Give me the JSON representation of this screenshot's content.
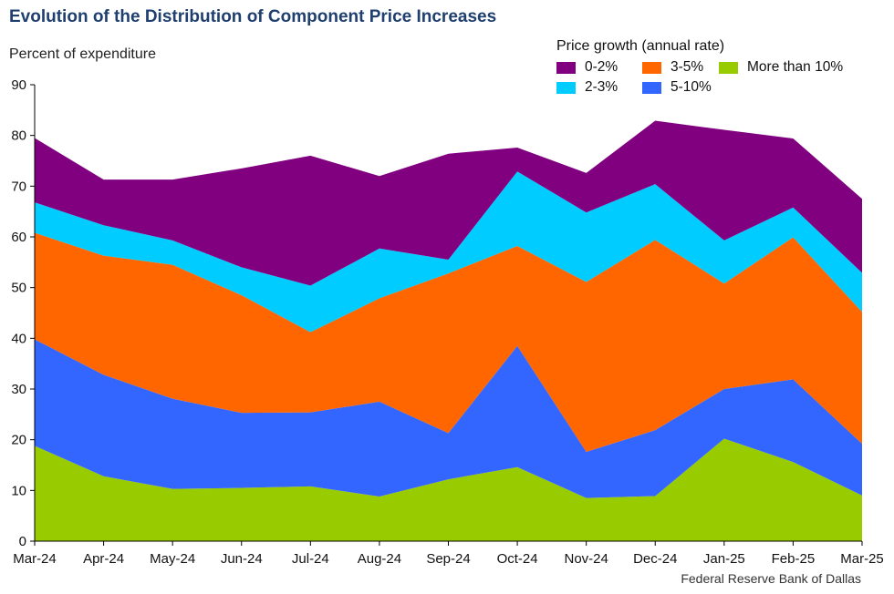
{
  "chart_data": {
    "type": "area",
    "stacked": true,
    "title": "Evolution of the Distribution of Component Price Increases",
    "ylabel": "Percent of expenditure",
    "xlabel": "",
    "ylim": [
      0,
      90
    ],
    "yticks": [
      0,
      10,
      20,
      30,
      40,
      50,
      60,
      70,
      80,
      90
    ],
    "categories": [
      "Mar-24",
      "Apr-24",
      "May-24",
      "Jun-24",
      "Jul-24",
      "Aug-24",
      "Sep-24",
      "Oct-24",
      "Nov-24",
      "Dec-24",
      "Jan-25",
      "Feb-25",
      "Mar-25"
    ],
    "legend_title": "Price growth (annual rate)",
    "legend_position": "top-right",
    "series": [
      {
        "name": "More than 10%",
        "color": "#99cc00",
        "values": [
          18.8,
          12.8,
          10.3,
          10.5,
          10.8,
          8.8,
          12.2,
          14.6,
          8.5,
          8.9,
          20.2,
          15.6,
          9.0
        ]
      },
      {
        "name": "5-10%",
        "color": "#3366ff",
        "values": [
          21.0,
          20.0,
          17.8,
          14.8,
          14.6,
          18.7,
          9.1,
          23.9,
          9.1,
          13.0,
          9.8,
          16.3,
          10.2
        ]
      },
      {
        "name": "3-5%",
        "color": "#ff6600",
        "values": [
          21.0,
          23.5,
          26.4,
          23.2,
          15.8,
          20.4,
          31.5,
          19.7,
          33.5,
          37.5,
          20.8,
          28.0,
          26.0
        ]
      },
      {
        "name": "2-3%",
        "color": "#00ccff",
        "values": [
          6.0,
          6.0,
          4.8,
          5.5,
          9.2,
          9.8,
          2.7,
          14.7,
          13.7,
          11.0,
          8.5,
          5.9,
          7.7
        ]
      },
      {
        "name": "0-2%",
        "color": "#800080",
        "values": [
          12.7,
          9.0,
          12.0,
          19.5,
          25.6,
          14.3,
          20.9,
          4.7,
          7.8,
          12.5,
          21.8,
          13.6,
          14.6
        ]
      }
    ],
    "grid": false,
    "source": "Federal Reserve Bank of Dallas"
  },
  "legend_order": [
    "0-2%",
    "3-5%",
    "More than 10%",
    "2-3%",
    "5-10%"
  ]
}
